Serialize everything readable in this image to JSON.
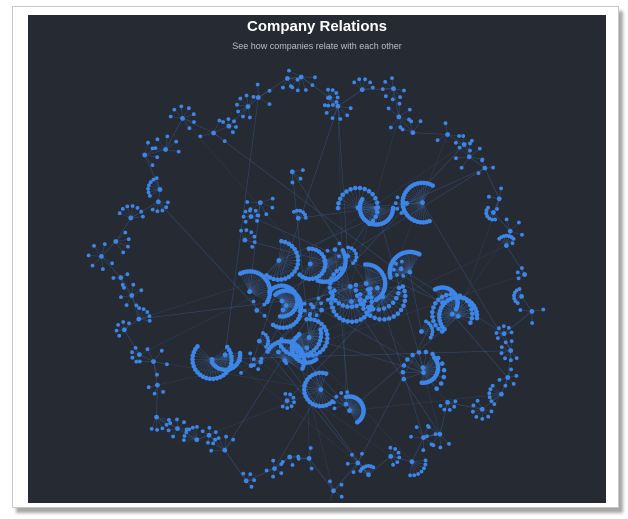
{
  "header": {
    "title": "Company Relations",
    "subtitle": "See how companies relate with each other"
  },
  "colors": {
    "background": "#262a33",
    "node": "#3d86e8",
    "link": "#3f6fae"
  }
}
